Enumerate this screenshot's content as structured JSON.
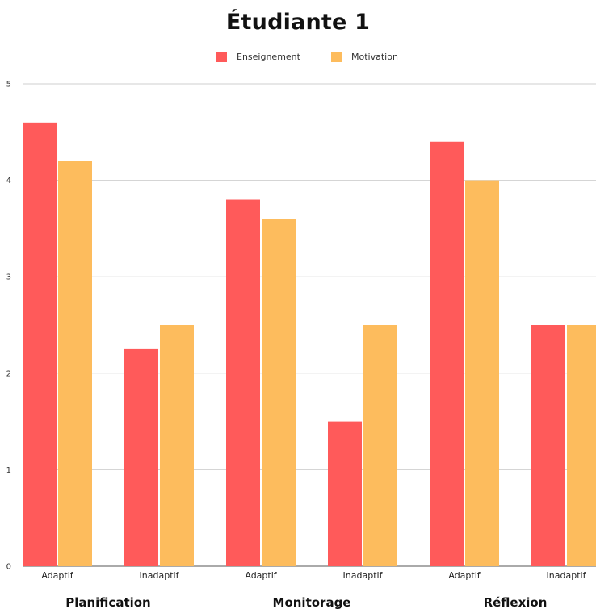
{
  "chart_data": {
    "type": "bar",
    "title": "Étudiante 1",
    "xlabel": "",
    "ylabel": "",
    "ylim": [
      0,
      5
    ],
    "yticks": [
      0,
      1,
      2,
      3,
      4,
      5
    ],
    "grid": true,
    "legend_position": "top",
    "categories": [
      "Adaptif",
      "Inadaptif",
      "Adaptif",
      "Inadaptif",
      "Adaptif",
      "Inadaptif"
    ],
    "groups": [
      "Planification",
      "Monitorage",
      "Réflexion"
    ],
    "series": [
      {
        "name": "Enseignement",
        "color": "#ff5a5a",
        "values": [
          4.6,
          2.25,
          3.8,
          1.5,
          4.4,
          2.5
        ]
      },
      {
        "name": "Motivation",
        "color": "#fdbc5d",
        "values": [
          4.2,
          2.5,
          3.6,
          2.5,
          4.0,
          2.5
        ]
      }
    ]
  }
}
